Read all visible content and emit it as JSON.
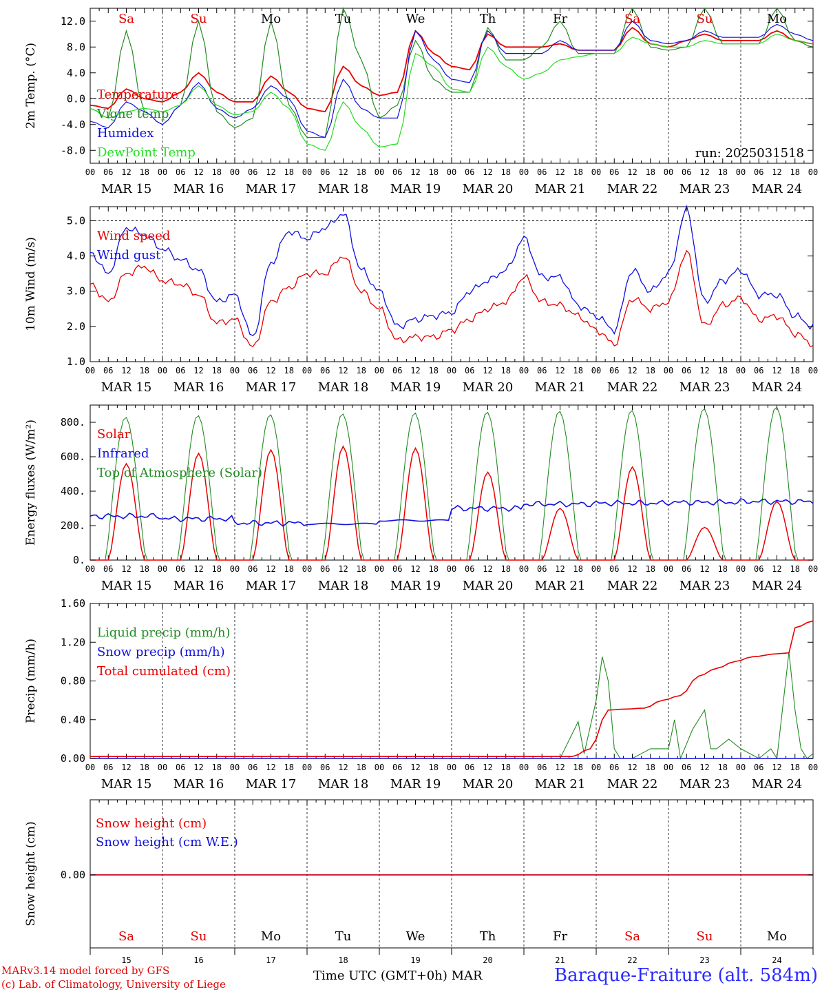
{
  "run_label": "run: 2025031518",
  "days": [
    "MAR 15",
    "MAR 16",
    "MAR 17",
    "MAR 18",
    "MAR 19",
    "MAR 20",
    "MAR 21",
    "MAR 22",
    "MAR 23",
    "MAR 24"
  ],
  "day_numbers": [
    "15",
    "16",
    "17",
    "18",
    "19",
    "20",
    "21",
    "22",
    "23",
    "24"
  ],
  "weekdays": [
    "Sa",
    "Su",
    "Mo",
    "Tu",
    "We",
    "Th",
    "Fr",
    "Sa",
    "Su",
    "Mo"
  ],
  "hour_ticks": [
    "00",
    "06",
    "12",
    "18"
  ],
  "last_hour_tick": "00",
  "footer": {
    "model": "MARv3.14 model forced by GFS",
    "copyright": "(c) Lab. of Climatology, University of Liege",
    "xlabel": "Time UTC (GMT+0h)",
    "month": "MAR",
    "station": "Baraque-Fraiture (alt. 584m)"
  },
  "colors": {
    "red": "#e80000",
    "green": "#228b22",
    "blue": "#1010e0",
    "lightgreen": "#22dd22",
    "weekend": "#e00000",
    "weekday": "#000000"
  },
  "chart_data": [
    {
      "type": "line",
      "ylabel": "2m Temp. (°C)",
      "ylim": [
        -10,
        14
      ],
      "yticks": [
        "-8.0",
        "-4.0",
        "0.0",
        "4.0",
        "8.0",
        "12.0"
      ],
      "x_hours": [
        0,
        6,
        12,
        18,
        24,
        30,
        36,
        42,
        48,
        54,
        60,
        66,
        72,
        78,
        84,
        90,
        96,
        102,
        108,
        114,
        120,
        126,
        132,
        138,
        144,
        150,
        156,
        162,
        168,
        174,
        180,
        186,
        192,
        198,
        204,
        210,
        216,
        222,
        228,
        234,
        240
      ],
      "series": [
        {
          "name": "Temperature",
          "color": "red",
          "values": [
            -1.0,
            -1.5,
            1.5,
            0.0,
            -0.5,
            1.0,
            4.0,
            1.0,
            -0.5,
            -0.5,
            3.5,
            1.0,
            -1.5,
            -2.0,
            5.0,
            2.0,
            0.5,
            1.0,
            10.5,
            7.0,
            5.0,
            4.5,
            10.0,
            8.0,
            8.0,
            8.0,
            8.5,
            7.5,
            7.5,
            7.5,
            11.0,
            8.5,
            8.0,
            9.0,
            10.0,
            9.0,
            9.0,
            9.0,
            10.5,
            9.0,
            8.5
          ]
        },
        {
          "name": "Vigne temp",
          "color": "green",
          "values": [
            -1.5,
            -3.0,
            10.5,
            -2.0,
            -4.0,
            -1.0,
            12.0,
            -2.0,
            -4.5,
            -3.0,
            12.0,
            -1.0,
            -6.0,
            -6.0,
            14.0,
            6.0,
            -3.0,
            -1.0,
            9.0,
            3.0,
            1.0,
            1.0,
            11.0,
            6.0,
            6.0,
            8.0,
            12.0,
            7.0,
            7.0,
            7.0,
            14.0,
            8.0,
            7.5,
            8.0,
            14.0,
            8.5,
            8.5,
            8.5,
            14.0,
            9.0,
            8.0
          ]
        },
        {
          "name": "Humidex",
          "color": "blue",
          "values": [
            -3.5,
            -4.5,
            -0.5,
            -2.0,
            -4.0,
            -1.0,
            2.5,
            -1.5,
            -3.0,
            -1.5,
            2.0,
            0.0,
            -5.0,
            -6.0,
            3.0,
            -1.5,
            -3.0,
            -3.0,
            10.5,
            6.0,
            3.0,
            2.5,
            10.5,
            7.0,
            7.0,
            7.0,
            9.0,
            7.5,
            7.5,
            7.5,
            12.0,
            9.0,
            8.5,
            9.0,
            10.5,
            9.5,
            9.5,
            9.5,
            11.5,
            10.0,
            9.0
          ]
        },
        {
          "name": "DewPoint Temp",
          "color": "lightgreen",
          "values": [
            -1.5,
            -3.0,
            -2.0,
            -1.5,
            -2.0,
            -1.0,
            2.0,
            -1.0,
            -2.5,
            -2.0,
            1.0,
            -1.5,
            -7.0,
            -8.0,
            -0.5,
            -4.5,
            -7.5,
            -7.0,
            7.0,
            5.0,
            1.5,
            1.0,
            8.0,
            5.0,
            3.0,
            4.0,
            6.0,
            6.5,
            7.0,
            7.0,
            9.5,
            8.5,
            8.0,
            8.0,
            9.0,
            8.5,
            8.5,
            8.5,
            10.0,
            9.0,
            8.5
          ]
        }
      ]
    },
    {
      "type": "line",
      "ylabel": "10m Wind (m/s)",
      "ylim": [
        1.0,
        5.4
      ],
      "yticks": [
        "1.0",
        "2.0",
        "3.0",
        "4.0",
        "5.0"
      ],
      "x_hours": [
        0,
        6,
        12,
        18,
        24,
        30,
        36,
        42,
        48,
        54,
        60,
        66,
        72,
        78,
        84,
        90,
        96,
        102,
        108,
        114,
        120,
        126,
        132,
        138,
        144,
        150,
        156,
        162,
        168,
        174,
        180,
        186,
        192,
        198,
        204,
        210,
        216,
        222,
        228,
        234,
        240
      ],
      "series": [
        {
          "name": "Wind speed",
          "color": "red",
          "values": [
            3.2,
            2.7,
            3.5,
            3.7,
            3.3,
            3.2,
            2.9,
            2.1,
            2.2,
            1.4,
            2.7,
            3.1,
            3.5,
            3.5,
            4.0,
            3.0,
            2.5,
            1.6,
            1.7,
            1.7,
            1.9,
            2.2,
            2.5,
            2.7,
            3.4,
            2.7,
            2.6,
            2.3,
            1.9,
            1.5,
            2.8,
            2.5,
            2.7,
            4.1,
            2.0,
            2.6,
            2.8,
            2.2,
            2.3,
            1.8,
            1.5
          ]
        },
        {
          "name": "Wind gust",
          "color": "blue",
          "values": [
            4.1,
            3.5,
            4.8,
            4.6,
            4.2,
            3.9,
            3.6,
            2.7,
            2.9,
            1.7,
            3.8,
            4.7,
            4.5,
            4.8,
            5.2,
            3.6,
            3.0,
            2.0,
            2.2,
            2.3,
            2.4,
            3.0,
            3.3,
            3.6,
            4.5,
            3.4,
            3.4,
            2.6,
            2.3,
            1.9,
            3.6,
            3.0,
            3.5,
            5.3,
            2.7,
            3.3,
            3.6,
            2.9,
            2.9,
            2.3,
            2.0
          ]
        }
      ]
    },
    {
      "type": "line",
      "ylabel": "Energy fluxes (W/m²)",
      "ylim": [
        0,
        900
      ],
      "yticks": [
        "0.",
        "200.",
        "400.",
        "600.",
        "800."
      ],
      "series": [
        {
          "name": "Solar",
          "color": "red",
          "daily_peak": [
            560,
            620,
            640,
            660,
            650,
            510,
            300,
            540,
            190,
            340
          ]
        },
        {
          "name": "Infrared",
          "color": "blue",
          "daily_mean": [
            255,
            240,
            215,
            210,
            230,
            300,
            325,
            330,
            335,
            340
          ]
        },
        {
          "name": "Top of Atmosphere (Solar)",
          "color": "green",
          "daily_peak": [
            830,
            840,
            845,
            850,
            855,
            860,
            865,
            870,
            880,
            890
          ]
        }
      ]
    },
    {
      "type": "line",
      "ylabel": "Precip (mm/h)",
      "ylim": [
        0.0,
        1.6
      ],
      "yticks": [
        "0.00",
        "0.40",
        "0.80",
        "1.20",
        "1.60"
      ],
      "series": [
        {
          "name": "Liquid precip (mm/h)",
          "color": "green"
        },
        {
          "name": "Snow precip (mm/h)",
          "color": "blue"
        },
        {
          "name": "Total cumulated (cm)",
          "color": "red"
        }
      ],
      "liquid_x_hours": [
        0,
        150,
        156,
        162,
        164,
        168,
        170,
        172,
        174,
        176,
        180,
        186,
        192,
        194,
        196,
        200,
        204,
        206,
        208,
        212,
        216,
        222,
        226,
        228,
        232,
        234,
        236,
        238,
        240
      ],
      "liquid_values": [
        0.0,
        0.0,
        0.0,
        0.38,
        0.05,
        0.6,
        1.05,
        0.8,
        0.1,
        0.0,
        0.0,
        0.1,
        0.1,
        0.4,
        0.0,
        0.3,
        0.5,
        0.1,
        0.1,
        0.2,
        0.1,
        0.0,
        0.1,
        0.0,
        1.1,
        0.5,
        0.1,
        0.0,
        0.05
      ],
      "total_x_hours": [
        0,
        160,
        166,
        172,
        178,
        184,
        190,
        196,
        202,
        208,
        214,
        220,
        228,
        232,
        234,
        240
      ],
      "total_values": [
        0.02,
        0.02,
        0.1,
        0.5,
        0.51,
        0.52,
        0.6,
        0.65,
        0.85,
        0.93,
        1.0,
        1.05,
        1.08,
        1.09,
        1.35,
        1.42
      ]
    },
    {
      "type": "line",
      "ylabel": "Snow height (cm)",
      "yticks": [
        "0.00"
      ],
      "series": [
        {
          "name": "Snow height (cm)",
          "color": "red",
          "value": 0.0
        },
        {
          "name": "Snow height (cm W.E.)",
          "color": "blue",
          "value": 0.0
        }
      ]
    }
  ]
}
